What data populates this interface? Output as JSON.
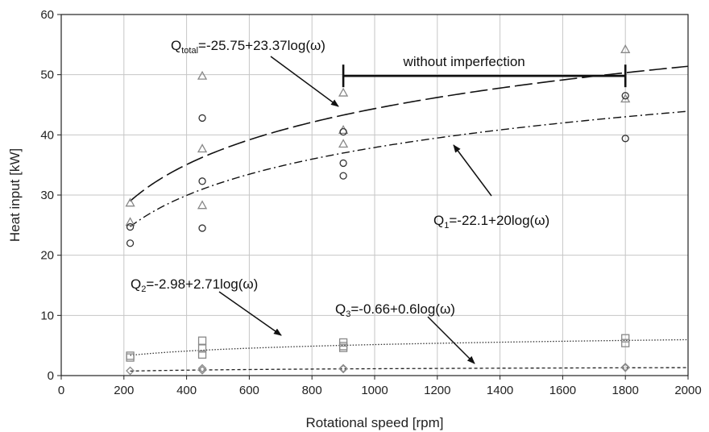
{
  "chart_data": {
    "type": "scatter",
    "xlabel": "Rotational speed [rpm]",
    "ylabel": "Heat input [kW]",
    "xlim": [
      0,
      2000
    ],
    "ylim": [
      0,
      60
    ],
    "xticks": [
      0,
      200,
      400,
      600,
      800,
      1000,
      1200,
      1400,
      1600,
      1800,
      2000
    ],
    "yticks": [
      0,
      10,
      20,
      30,
      40,
      50,
      60
    ],
    "grid": true,
    "series": [
      {
        "marker": "triangle",
        "color": "#888888",
        "points": [
          [
            220,
            28.7
          ],
          [
            220,
            25.5
          ],
          [
            450,
            49.8
          ],
          [
            450,
            37.7
          ],
          [
            450,
            28.3
          ],
          [
            900,
            47.0
          ],
          [
            900,
            40.8
          ],
          [
            900,
            38.5
          ],
          [
            1800,
            54.2
          ],
          [
            1800,
            46.0
          ]
        ]
      },
      {
        "marker": "circle",
        "color": "#333333",
        "points": [
          [
            220,
            24.7
          ],
          [
            220,
            22.0
          ],
          [
            450,
            42.8
          ],
          [
            450,
            32.3
          ],
          [
            450,
            24.5
          ],
          [
            900,
            40.5
          ],
          [
            900,
            35.3
          ],
          [
            900,
            33.2
          ],
          [
            1800,
            46.5
          ],
          [
            1800,
            39.4
          ]
        ]
      },
      {
        "marker": "square",
        "color": "#888888",
        "points": [
          [
            220,
            3.3
          ],
          [
            220,
            3.0
          ],
          [
            450,
            5.8
          ],
          [
            450,
            4.5
          ],
          [
            450,
            3.5
          ],
          [
            900,
            5.5
          ],
          [
            900,
            4.9
          ],
          [
            900,
            4.6
          ],
          [
            1800,
            6.2
          ],
          [
            1800,
            5.4
          ]
        ]
      },
      {
        "marker": "diamond",
        "color": "#888888",
        "points": [
          [
            220,
            0.8
          ],
          [
            450,
            1.2
          ],
          [
            450,
            0.9
          ],
          [
            900,
            1.2
          ],
          [
            900,
            1.1
          ],
          [
            1800,
            1.4
          ],
          [
            1800,
            1.3
          ]
        ]
      }
    ],
    "fits": [
      {
        "a": -25.75,
        "b": 23.37,
        "dash": "22,6",
        "width": 1.6,
        "color": "#111111"
      },
      {
        "a": -22.1,
        "b": 20,
        "dash": "10,4,2,4",
        "width": 1.4,
        "color": "#111111"
      },
      {
        "a": -2.98,
        "b": 2.71,
        "dash": "1.5,2",
        "width": 1.3,
        "color": "#333333"
      },
      {
        "a": -0.66,
        "b": 0.6,
        "dash": "4,3",
        "width": 1.3,
        "color": "#222222"
      }
    ],
    "annotations": {
      "q_total": {
        "symbol": "Q",
        "sub": "total",
        "text": "=-25.75+23.37log(ω)"
      },
      "q1": {
        "symbol": "Q",
        "sub": "1",
        "text": "=-22.1+20log(ω)"
      },
      "q2": {
        "symbol": "Q",
        "sub": "2",
        "text": "=-2.98+2.71log(ω)"
      },
      "q3": {
        "symbol": "Q",
        "sub": "3",
        "text": "=-0.66+0.6log(ω)"
      },
      "imperfection": {
        "text": "without imperfection",
        "x_from": 900,
        "x_to": 1800,
        "y": 49.8
      }
    }
  }
}
